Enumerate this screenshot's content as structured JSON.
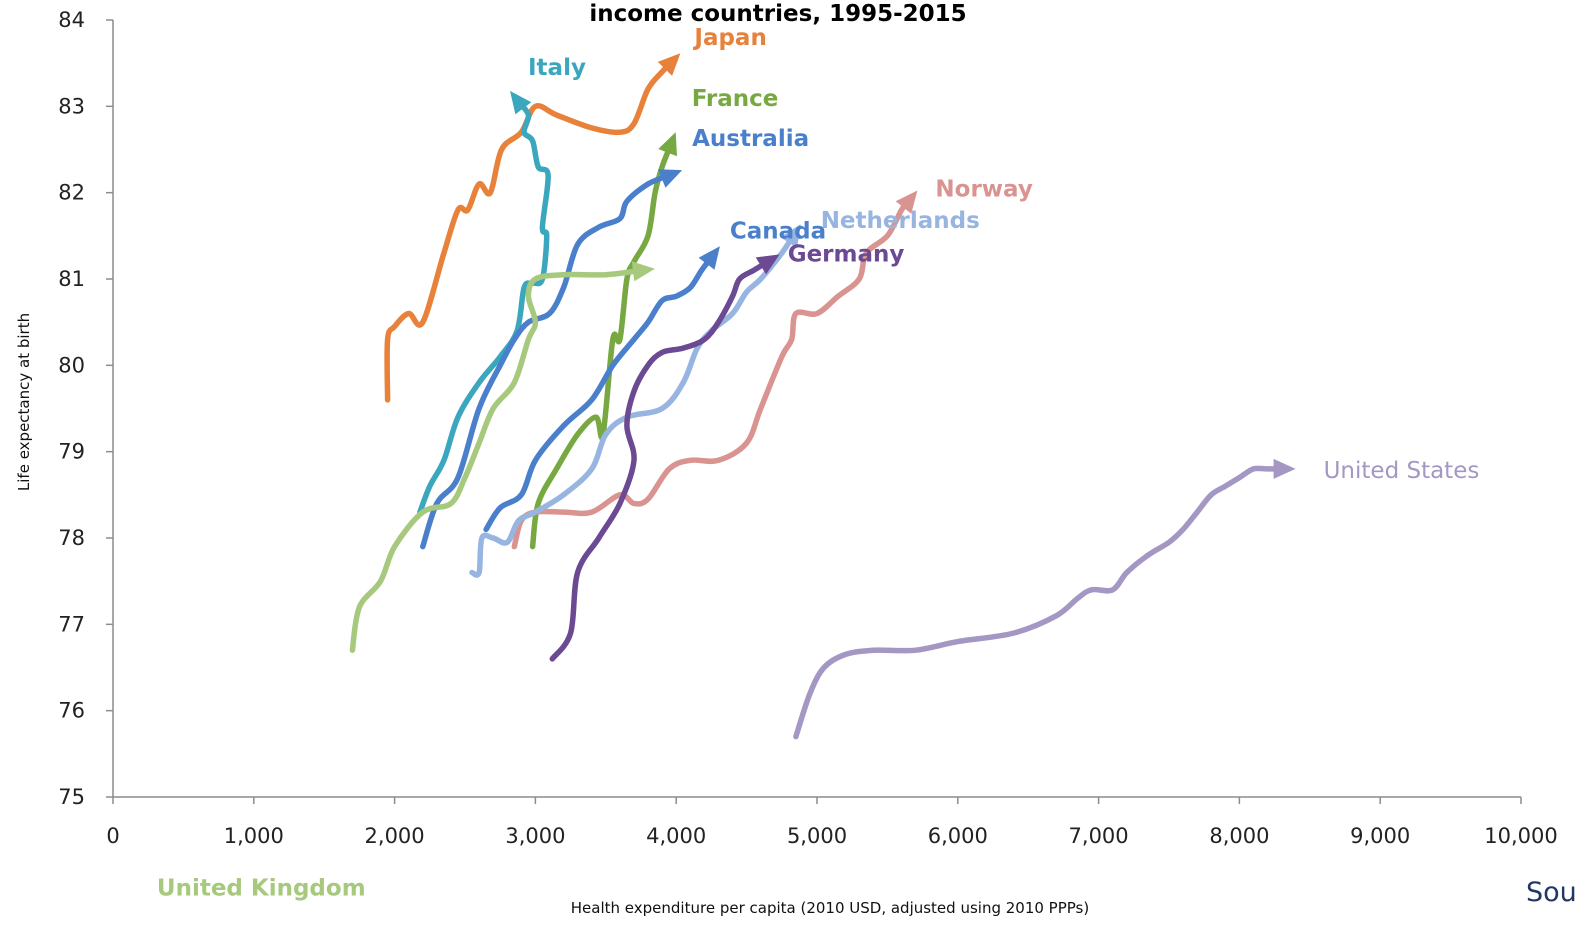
{
  "chart_data": {
    "type": "line",
    "title": "income countries, 1995-2015",
    "xlabel": "Health expenditure per capita (2010 USD, adjusted using 2010 PPPs)",
    "ylabel": "Life expectancy at birth",
    "xlim": [
      0,
      10000
    ],
    "ylim": [
      75,
      84
    ],
    "x_ticks": [
      0,
      1000,
      2000,
      3000,
      4000,
      5000,
      6000,
      7000,
      8000,
      9000,
      10000
    ],
    "x_tick_labels": [
      "0",
      "1,000",
      "2,000",
      "3,000",
      "4,000",
      "5,000",
      "6,000",
      "7,000",
      "8,000",
      "9,000",
      "10,000"
    ],
    "y_ticks": [
      75,
      76,
      77,
      78,
      79,
      80,
      81,
      82,
      83,
      84
    ],
    "y_tick_labels": [
      "75",
      "76",
      "77",
      "78",
      "79",
      "80",
      "81",
      "82",
      "83",
      "84"
    ],
    "grid": false,
    "legend": "direct labels at line ends",
    "source_note": "Sou",
    "series": [
      {
        "name": "Japan",
        "color": "#e8813a",
        "bold": true,
        "points": [
          [
            1950,
            79.6
          ],
          [
            1950,
            80.3
          ],
          [
            2000,
            80.45
          ],
          [
            2100,
            80.6
          ],
          [
            2200,
            80.5
          ],
          [
            2350,
            81.3
          ],
          [
            2450,
            81.8
          ],
          [
            2520,
            81.8
          ],
          [
            2600,
            82.1
          ],
          [
            2680,
            82.0
          ],
          [
            2760,
            82.5
          ],
          [
            2900,
            82.7
          ],
          [
            3000,
            83.0
          ],
          [
            3150,
            82.9
          ],
          [
            3400,
            82.75
          ],
          [
            3600,
            82.7
          ],
          [
            3700,
            82.8
          ],
          [
            3800,
            83.2
          ],
          [
            3900,
            83.4
          ],
          [
            3960,
            83.5
          ]
        ]
      },
      {
        "name": "Italy",
        "color": "#3ba7bf",
        "bold": true,
        "points": [
          [
            2180,
            78.3
          ],
          [
            2250,
            78.6
          ],
          [
            2350,
            78.9
          ],
          [
            2450,
            79.4
          ],
          [
            2600,
            79.8
          ],
          [
            2750,
            80.1
          ],
          [
            2870,
            80.4
          ],
          [
            2920,
            80.9
          ],
          [
            2980,
            80.95
          ],
          [
            3050,
            81.0
          ],
          [
            3080,
            81.5
          ],
          [
            3050,
            81.6
          ],
          [
            3090,
            82.2
          ],
          [
            3020,
            82.3
          ],
          [
            2980,
            82.6
          ],
          [
            2920,
            82.7
          ],
          [
            2950,
            82.9
          ],
          [
            2880,
            83.05
          ]
        ]
      },
      {
        "name": "France",
        "color": "#77a841",
        "bold": true,
        "points": [
          [
            2980,
            77.9
          ],
          [
            3020,
            78.4
          ],
          [
            3150,
            78.8
          ],
          [
            3300,
            79.2
          ],
          [
            3430,
            79.4
          ],
          [
            3480,
            79.2
          ],
          [
            3550,
            80.3
          ],
          [
            3600,
            80.3
          ],
          [
            3650,
            81.0
          ],
          [
            3700,
            81.2
          ],
          [
            3800,
            81.5
          ],
          [
            3850,
            82.0
          ],
          [
            3900,
            82.3
          ],
          [
            3960,
            82.55
          ]
        ]
      },
      {
        "name": "Australia",
        "color": "#4a7fcb",
        "bold": true,
        "points": [
          [
            2200,
            77.9
          ],
          [
            2300,
            78.4
          ],
          [
            2450,
            78.7
          ],
          [
            2600,
            79.5
          ],
          [
            2750,
            80.0
          ],
          [
            2850,
            80.3
          ],
          [
            2950,
            80.5
          ],
          [
            3100,
            80.6
          ],
          [
            3200,
            80.9
          ],
          [
            3300,
            81.4
          ],
          [
            3450,
            81.6
          ],
          [
            3600,
            81.7
          ],
          [
            3650,
            81.9
          ],
          [
            3800,
            82.1
          ],
          [
            3950,
            82.2
          ]
        ]
      },
      {
        "name": "Canada",
        "color": "#4a7fcb",
        "bold": true,
        "points": [
          [
            2650,
            78.1
          ],
          [
            2750,
            78.35
          ],
          [
            2900,
            78.5
          ],
          [
            3000,
            78.9
          ],
          [
            3200,
            79.3
          ],
          [
            3400,
            79.6
          ],
          [
            3550,
            80.0
          ],
          [
            3700,
            80.3
          ],
          [
            3800,
            80.5
          ],
          [
            3900,
            80.75
          ],
          [
            4000,
            80.8
          ],
          [
            4100,
            80.9
          ],
          [
            4180,
            81.1
          ],
          [
            4250,
            81.25
          ]
        ]
      },
      {
        "name": "Norway",
        "color": "#d99390",
        "bold": true,
        "points": [
          [
            2850,
            77.9
          ],
          [
            2900,
            78.2
          ],
          [
            3000,
            78.3
          ],
          [
            3200,
            78.3
          ],
          [
            3400,
            78.3
          ],
          [
            3600,
            78.5
          ],
          [
            3700,
            78.4
          ],
          [
            3800,
            78.45
          ],
          [
            3950,
            78.8
          ],
          [
            4100,
            78.9
          ],
          [
            4300,
            78.9
          ],
          [
            4500,
            79.1
          ],
          [
            4600,
            79.5
          ],
          [
            4750,
            80.1
          ],
          [
            4820,
            80.3
          ],
          [
            4850,
            80.6
          ],
          [
            5000,
            80.6
          ],
          [
            5150,
            80.8
          ],
          [
            5300,
            81.0
          ],
          [
            5350,
            81.3
          ],
          [
            5500,
            81.5
          ],
          [
            5600,
            81.8
          ],
          [
            5650,
            81.9
          ]
        ]
      },
      {
        "name": "Netherlands",
        "color": "#97b5e0",
        "bold": true,
        "points": [
          [
            2550,
            77.6
          ],
          [
            2600,
            77.6
          ],
          [
            2620,
            78.0
          ],
          [
            2700,
            78.0
          ],
          [
            2800,
            77.95
          ],
          [
            2880,
            78.2
          ],
          [
            3000,
            78.3
          ],
          [
            3200,
            78.5
          ],
          [
            3400,
            78.8
          ],
          [
            3500,
            79.2
          ],
          [
            3650,
            79.4
          ],
          [
            3900,
            79.5
          ],
          [
            4050,
            79.8
          ],
          [
            4150,
            80.2
          ],
          [
            4250,
            80.4
          ],
          [
            4400,
            80.6
          ],
          [
            4500,
            80.85
          ],
          [
            4600,
            81.0
          ],
          [
            4750,
            81.3
          ],
          [
            4830,
            81.5
          ]
        ]
      },
      {
        "name": "Germany",
        "color": "#6b4a93",
        "bold": true,
        "points": [
          [
            3120,
            76.6
          ],
          [
            3250,
            76.9
          ],
          [
            3300,
            77.6
          ],
          [
            3450,
            78.0
          ],
          [
            3600,
            78.4
          ],
          [
            3700,
            78.9
          ],
          [
            3650,
            79.3
          ],
          [
            3700,
            79.7
          ],
          [
            3800,
            80.0
          ],
          [
            3900,
            80.15
          ],
          [
            4050,
            80.2
          ],
          [
            4200,
            80.3
          ],
          [
            4300,
            80.5
          ],
          [
            4400,
            80.8
          ],
          [
            4450,
            81.0
          ],
          [
            4550,
            81.1
          ],
          [
            4650,
            81.2
          ]
        ]
      },
      {
        "name": "United Kingdom",
        "color": "#a6c97e",
        "bold": true,
        "points": [
          [
            1700,
            76.7
          ],
          [
            1750,
            77.2
          ],
          [
            1900,
            77.5
          ],
          [
            2000,
            77.9
          ],
          [
            2200,
            78.3
          ],
          [
            2400,
            78.4
          ],
          [
            2500,
            78.7
          ],
          [
            2600,
            79.1
          ],
          [
            2700,
            79.5
          ],
          [
            2850,
            79.8
          ],
          [
            2950,
            80.3
          ],
          [
            3000,
            80.5
          ],
          [
            2950,
            80.8
          ],
          [
            3000,
            81.0
          ],
          [
            3200,
            81.05
          ],
          [
            3500,
            81.05
          ],
          [
            3750,
            81.1
          ]
        ]
      },
      {
        "name": "United States",
        "color": "#a597c4",
        "bold": false,
        "points": [
          [
            4850,
            75.7
          ],
          [
            4950,
            76.2
          ],
          [
            5050,
            76.5
          ],
          [
            5200,
            76.65
          ],
          [
            5400,
            76.7
          ],
          [
            5700,
            76.7
          ],
          [
            6000,
            76.8
          ],
          [
            6400,
            76.9
          ],
          [
            6700,
            77.1
          ],
          [
            6850,
            77.3
          ],
          [
            6950,
            77.4
          ],
          [
            7100,
            77.4
          ],
          [
            7200,
            77.6
          ],
          [
            7350,
            77.8
          ],
          [
            7500,
            77.95
          ],
          [
            7600,
            78.1
          ],
          [
            7700,
            78.3
          ],
          [
            7800,
            78.5
          ],
          [
            7900,
            78.6
          ],
          [
            8000,
            78.7
          ],
          [
            8100,
            78.8
          ],
          [
            8200,
            78.8
          ],
          [
            8300,
            78.8
          ]
        ]
      }
    ]
  }
}
